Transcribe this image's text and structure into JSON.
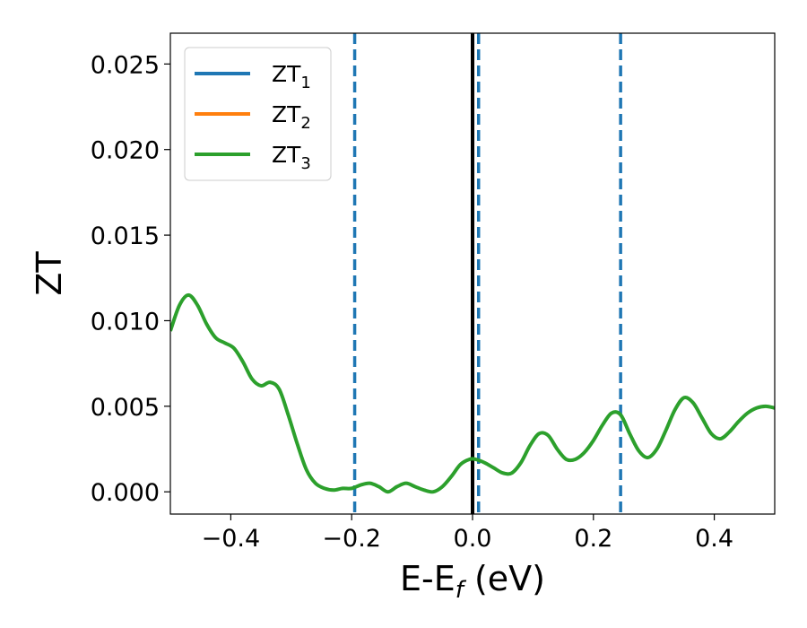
{
  "chart_data": {
    "type": "line",
    "xlabel_main": "E-E",
    "xlabel_sub": "f",
    "xlabel_tail": " (eV)",
    "ylabel": "ZT",
    "xlim": [
      -0.5,
      0.5
    ],
    "ylim": [
      -0.0013,
      0.0268
    ],
    "xticks": [
      -0.4,
      -0.2,
      0.0,
      0.2,
      0.4
    ],
    "xtick_labels": [
      "−0.4",
      "−0.2",
      "0.0",
      "0.2",
      "0.4"
    ],
    "yticks": [
      0.0,
      0.005,
      0.01,
      0.015,
      0.02,
      0.025
    ],
    "ytick_labels": [
      "0.000",
      "0.005",
      "0.010",
      "0.015",
      "0.020",
      "0.025"
    ],
    "grid": false,
    "legend_position": "top-left",
    "series": [
      {
        "name_base": "ZT",
        "name_sub": "1",
        "color": "#1f77b4"
      },
      {
        "name_base": "ZT",
        "name_sub": "2",
        "color": "#ff7f0e"
      },
      {
        "name_base": "ZT",
        "name_sub": "3",
        "color": "#2ca02c"
      }
    ],
    "curve": {
      "x": [
        -0.5,
        -0.485,
        -0.47,
        -0.455,
        -0.44,
        -0.425,
        -0.41,
        -0.395,
        -0.38,
        -0.365,
        -0.35,
        -0.335,
        -0.32,
        -0.305,
        -0.29,
        -0.275,
        -0.26,
        -0.245,
        -0.23,
        -0.215,
        -0.2,
        -0.185,
        -0.17,
        -0.155,
        -0.14,
        -0.125,
        -0.11,
        -0.095,
        -0.08,
        -0.065,
        -0.05,
        -0.035,
        -0.02,
        -0.005,
        0.005,
        0.02,
        0.035,
        0.05,
        0.065,
        0.08,
        0.095,
        0.11,
        0.125,
        0.14,
        0.155,
        0.17,
        0.185,
        0.2,
        0.215,
        0.23,
        0.245,
        0.26,
        0.275,
        0.29,
        0.305,
        0.32,
        0.335,
        0.35,
        0.365,
        0.38,
        0.395,
        0.41,
        0.425,
        0.44,
        0.455,
        0.47,
        0.485,
        0.5
      ],
      "y": [
        0.0094,
        0.0109,
        0.0115,
        0.0109,
        0.0098,
        0.009,
        0.0087,
        0.0084,
        0.0076,
        0.0066,
        0.0062,
        0.0064,
        0.006,
        0.0045,
        0.0028,
        0.0013,
        0.0005,
        0.0002,
        0.0001,
        0.0002,
        0.0002,
        0.0004,
        0.0005,
        0.0003,
        0.0,
        0.0003,
        0.0005,
        0.0003,
        0.0001,
        0.0,
        0.0003,
        0.0009,
        0.0016,
        0.0019,
        0.0019,
        0.0017,
        0.0014,
        0.0011,
        0.0011,
        0.0017,
        0.0027,
        0.0034,
        0.0033,
        0.0025,
        0.0019,
        0.0019,
        0.0023,
        0.003,
        0.0039,
        0.0046,
        0.0045,
        0.0034,
        0.0024,
        0.002,
        0.0025,
        0.0036,
        0.0048,
        0.0055,
        0.0052,
        0.0043,
        0.0034,
        0.0031,
        0.0035,
        0.0041,
        0.0046,
        0.0049,
        0.005,
        0.0049
      ],
      "color": "#2ca02c"
    },
    "vlines_dashed": {
      "x": [
        -0.195,
        0.01,
        0.245
      ],
      "color": "#1f77b4"
    },
    "vline_solid": {
      "x": 0.0,
      "color": "#000000"
    }
  }
}
